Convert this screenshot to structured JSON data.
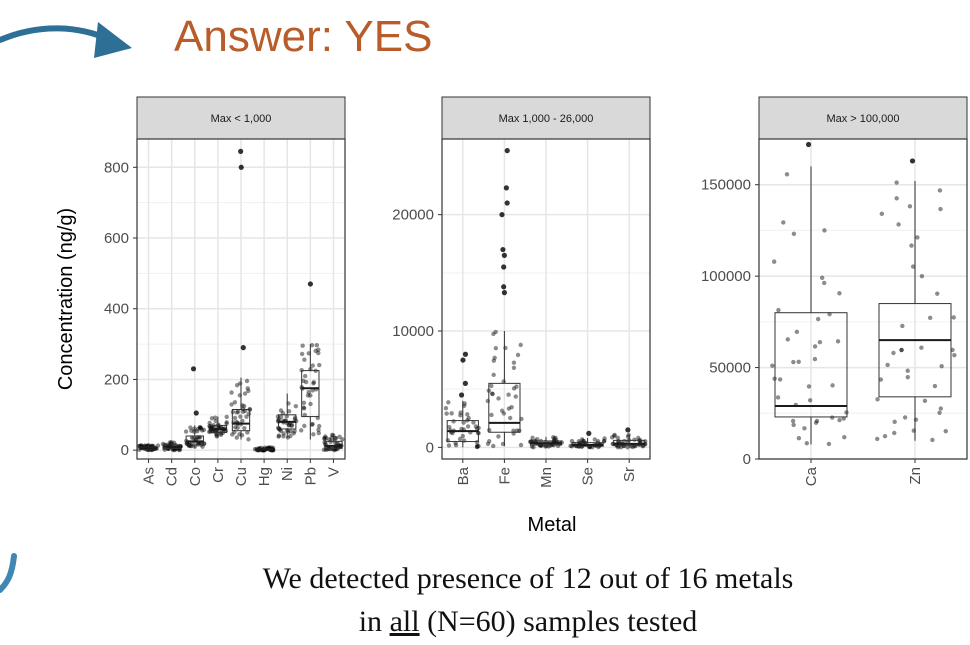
{
  "slide": {
    "title": "Answer: YES",
    "caption_line1": "We detected presence of 12 out of 16 metals",
    "caption_line2_pre": "in ",
    "caption_line2_ul": "all",
    "caption_line2_post": " (N=60) samples tested",
    "title_color": "#b85c2a",
    "arrow_color": "#2e6f96"
  },
  "chart_data": {
    "type": "boxplot",
    "ylabel": "Concentration (ng/g)",
    "xlabel": "Metal",
    "panels": [
      {
        "strip": "Max < 1,000",
        "ylim": [
          -25,
          880
        ],
        "yticks": [
          0,
          200,
          400,
          600,
          800
        ],
        "categories": [
          "As",
          "Cd",
          "Co",
          "Cr",
          "Cu",
          "Hg",
          "Ni",
          "Pb",
          "V"
        ],
        "boxes": [
          {
            "q1": 2,
            "median": 5,
            "q3": 9,
            "lo": 0,
            "hi": 14
          },
          {
            "q1": 5,
            "median": 10,
            "q3": 15,
            "lo": 0,
            "hi": 25
          },
          {
            "q1": 15,
            "median": 25,
            "q3": 40,
            "lo": 5,
            "hi": 70
          },
          {
            "q1": 50,
            "median": 60,
            "q3": 70,
            "lo": 35,
            "hi": 95
          },
          {
            "q1": 55,
            "median": 75,
            "q3": 115,
            "lo": 30,
            "hi": 205
          },
          {
            "q1": 0,
            "median": 2,
            "q3": 4,
            "lo": 0,
            "hi": 8
          },
          {
            "q1": 60,
            "median": 80,
            "q3": 100,
            "lo": 35,
            "hi": 160
          },
          {
            "q1": 95,
            "median": 175,
            "q3": 225,
            "lo": 30,
            "hi": 300
          },
          {
            "q1": 5,
            "median": 12,
            "q3": 25,
            "lo": 0,
            "hi": 45
          }
        ],
        "outliers": [
          {
            "cat": 2,
            "value": 230
          },
          {
            "cat": 2,
            "value": 105
          },
          {
            "cat": 4,
            "value": 845
          },
          {
            "cat": 4,
            "value": 800
          },
          {
            "cat": 4,
            "value": 290
          },
          {
            "cat": 7,
            "value": 470
          }
        ]
      },
      {
        "strip": "Max 1,000 - 26,000",
        "ylim": [
          -1000,
          26500
        ],
        "yticks": [
          0,
          10000,
          20000
        ],
        "categories": [
          "Ba",
          "Fe",
          "Mn",
          "Se",
          "Sr"
        ],
        "boxes": [
          {
            "q1": 500,
            "median": 1400,
            "q3": 2300,
            "lo": 0,
            "hi": 4000
          },
          {
            "q1": 1300,
            "median": 2100,
            "q3": 5500,
            "lo": 100,
            "hi": 10000
          },
          {
            "q1": 200,
            "median": 350,
            "q3": 550,
            "lo": 0,
            "hi": 900
          },
          {
            "q1": 100,
            "median": 200,
            "q3": 400,
            "lo": 0,
            "hi": 800
          },
          {
            "q1": 150,
            "median": 300,
            "q3": 600,
            "lo": 0,
            "hi": 1100
          }
        ],
        "outliers": [
          {
            "cat": 0,
            "value": 8000
          },
          {
            "cat": 0,
            "value": 7500
          },
          {
            "cat": 0,
            "value": 5500
          },
          {
            "cat": 0,
            "value": 4500
          },
          {
            "cat": 1,
            "value": 25500
          },
          {
            "cat": 1,
            "value": 22300
          },
          {
            "cat": 1,
            "value": 21000
          },
          {
            "cat": 1,
            "value": 20000
          },
          {
            "cat": 1,
            "value": 17000
          },
          {
            "cat": 1,
            "value": 16500
          },
          {
            "cat": 1,
            "value": 15500
          },
          {
            "cat": 1,
            "value": 13800
          },
          {
            "cat": 1,
            "value": 13300
          },
          {
            "cat": 3,
            "value": 1200
          },
          {
            "cat": 4,
            "value": 1500
          }
        ]
      },
      {
        "strip": "Max > 100,000",
        "ylim": [
          0,
          175000
        ],
        "yticks": [
          0,
          50000,
          100000,
          150000
        ],
        "categories": [
          "Ca",
          "Zn"
        ],
        "boxes": [
          {
            "q1": 23000,
            "median": 29000,
            "q3": 80000,
            "lo": 8000,
            "hi": 160000
          },
          {
            "q1": 34000,
            "median": 65000,
            "q3": 85000,
            "lo": 10000,
            "hi": 152000
          }
        ],
        "outliers": [
          {
            "cat": 0,
            "value": 172000
          },
          {
            "cat": 1,
            "value": 163000
          }
        ]
      }
    ]
  }
}
